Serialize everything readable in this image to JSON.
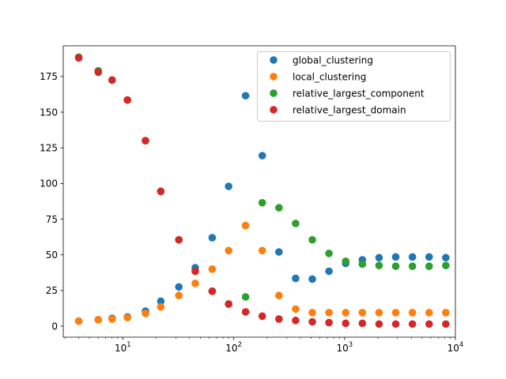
{
  "chart_data": {
    "type": "scatter",
    "title": "",
    "xlabel": "",
    "ylabel": "",
    "x_scale": "log",
    "xlim": [
      2.9,
      10000
    ],
    "ylim": [
      -7.7,
      196.5
    ],
    "x_ticks": [
      {
        "value": 10,
        "base": "10",
        "exp": "1"
      },
      {
        "value": 100,
        "base": "10",
        "exp": "2"
      },
      {
        "value": 1000,
        "base": "10",
        "exp": "3"
      },
      {
        "value": 10000,
        "base": "10",
        "exp": "4"
      }
    ],
    "y_ticks": [
      0,
      25,
      50,
      75,
      100,
      125,
      150,
      175
    ],
    "y_tick_labels": [
      "0",
      "25",
      "50",
      "75",
      "100",
      "125",
      "150",
      "175"
    ],
    "grid": false,
    "legend_position": "top-right",
    "x": [
      4,
      6,
      8,
      11,
      16,
      22,
      32,
      45,
      64,
      90,
      128,
      181,
      256,
      362,
      512,
      724,
      1024,
      1448,
      2048,
      2896,
      4096,
      5793,
      8192
    ],
    "series": [
      {
        "name": "global_clustering",
        "color": "#1f77b4",
        "values": [
          3.5,
          4.5,
          5.5,
          6.5,
          10.5,
          17.5,
          27.5,
          41,
          62,
          98,
          161.5,
          119.5,
          52,
          33.5,
          33,
          38.5,
          44,
          46.5,
          48,
          48.5,
          48.5,
          48.5,
          48
        ]
      },
      {
        "name": "local_clustering",
        "color": "#ff7f0e",
        "values": [
          3.5,
          4.5,
          5,
          6,
          9,
          13.5,
          21.5,
          30,
          40,
          53,
          70.5,
          53,
          21.5,
          12,
          9.5,
          9.5,
          9.5,
          9.5,
          9.5,
          9.5,
          9.5,
          9.5,
          9.5
        ]
      },
      {
        "name": "relative_largest_component",
        "color": "#2ca02c",
        "values": [
          188.5,
          179,
          172.5,
          158.5,
          130,
          94.5,
          60.5,
          38.5,
          24.5,
          15.5,
          20.5,
          86.5,
          83,
          72,
          60.5,
          51,
          45.5,
          43.5,
          42.5,
          42,
          42,
          42,
          42.5
        ]
      },
      {
        "name": "relative_largest_domain",
        "color": "#d62728",
        "values": [
          188,
          178,
          172.5,
          158.5,
          130,
          94.5,
          60.5,
          38.5,
          24.5,
          15.5,
          10,
          7,
          5,
          4,
          3,
          2.5,
          2,
          2,
          1.5,
          1.5,
          1.5,
          1.5,
          1.5
        ]
      }
    ]
  }
}
